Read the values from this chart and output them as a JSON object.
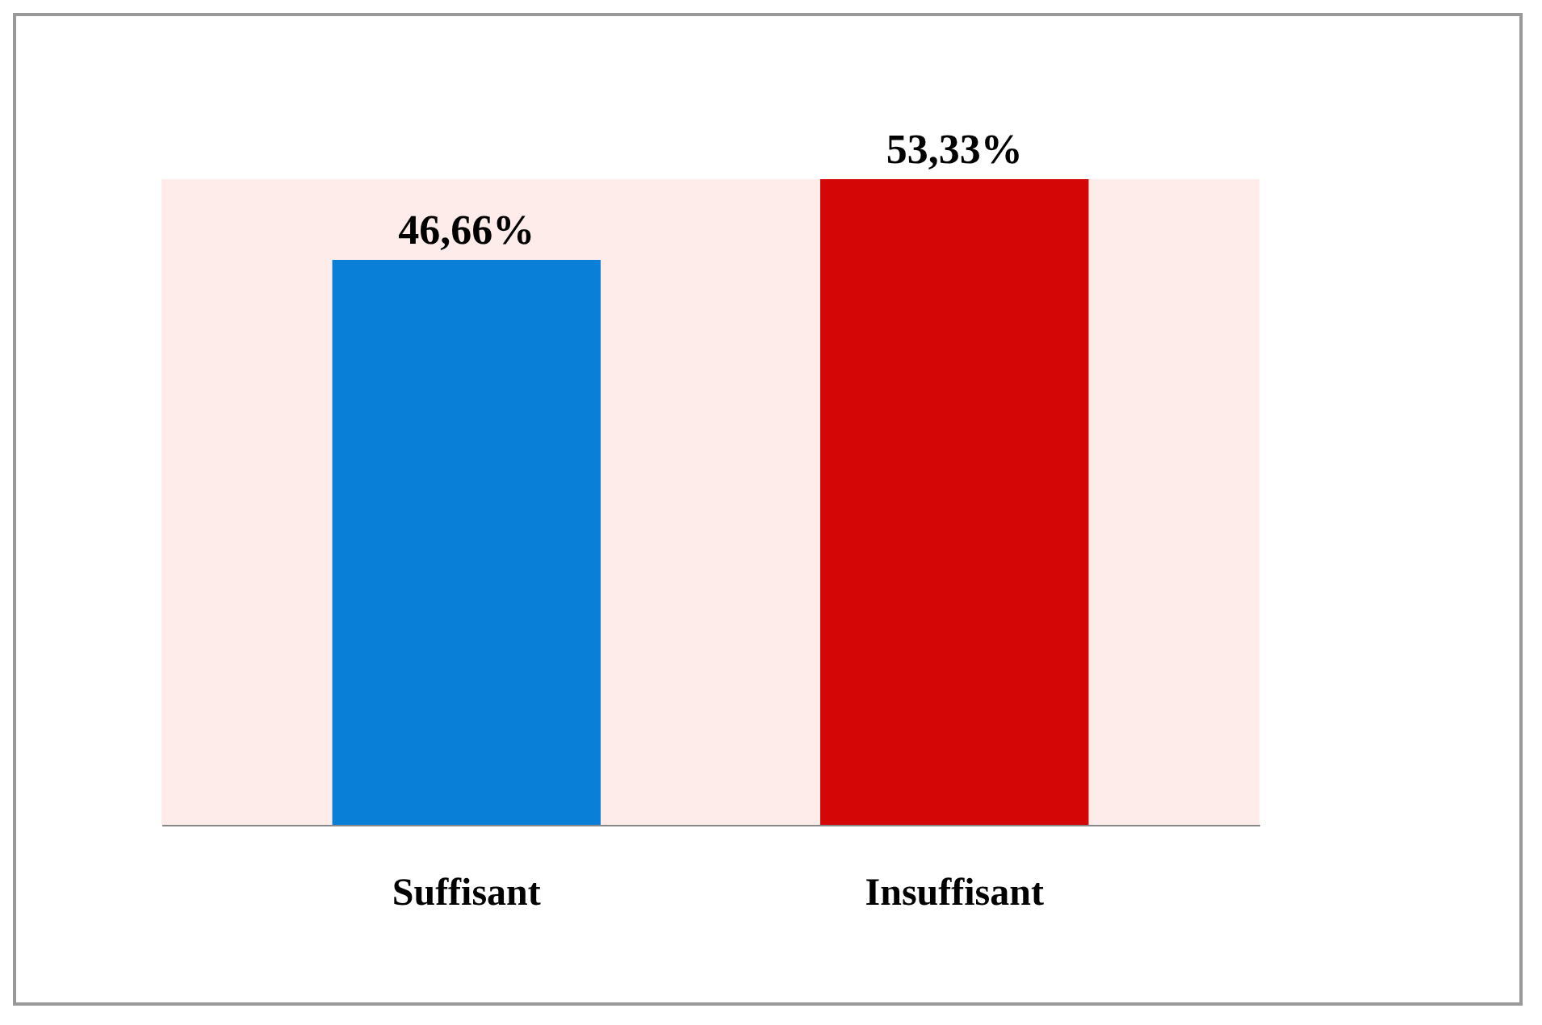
{
  "chart_data": {
    "type": "bar",
    "categories": [
      "Suffisant",
      "Insuffisant"
    ],
    "values": [
      46.66,
      53.33
    ],
    "colors": [
      "#0a7fd8",
      "#d40606"
    ],
    "value_labels": [
      "46,66%",
      "53,33%"
    ],
    "tick_labels": "x",
    "grid": false
  }
}
